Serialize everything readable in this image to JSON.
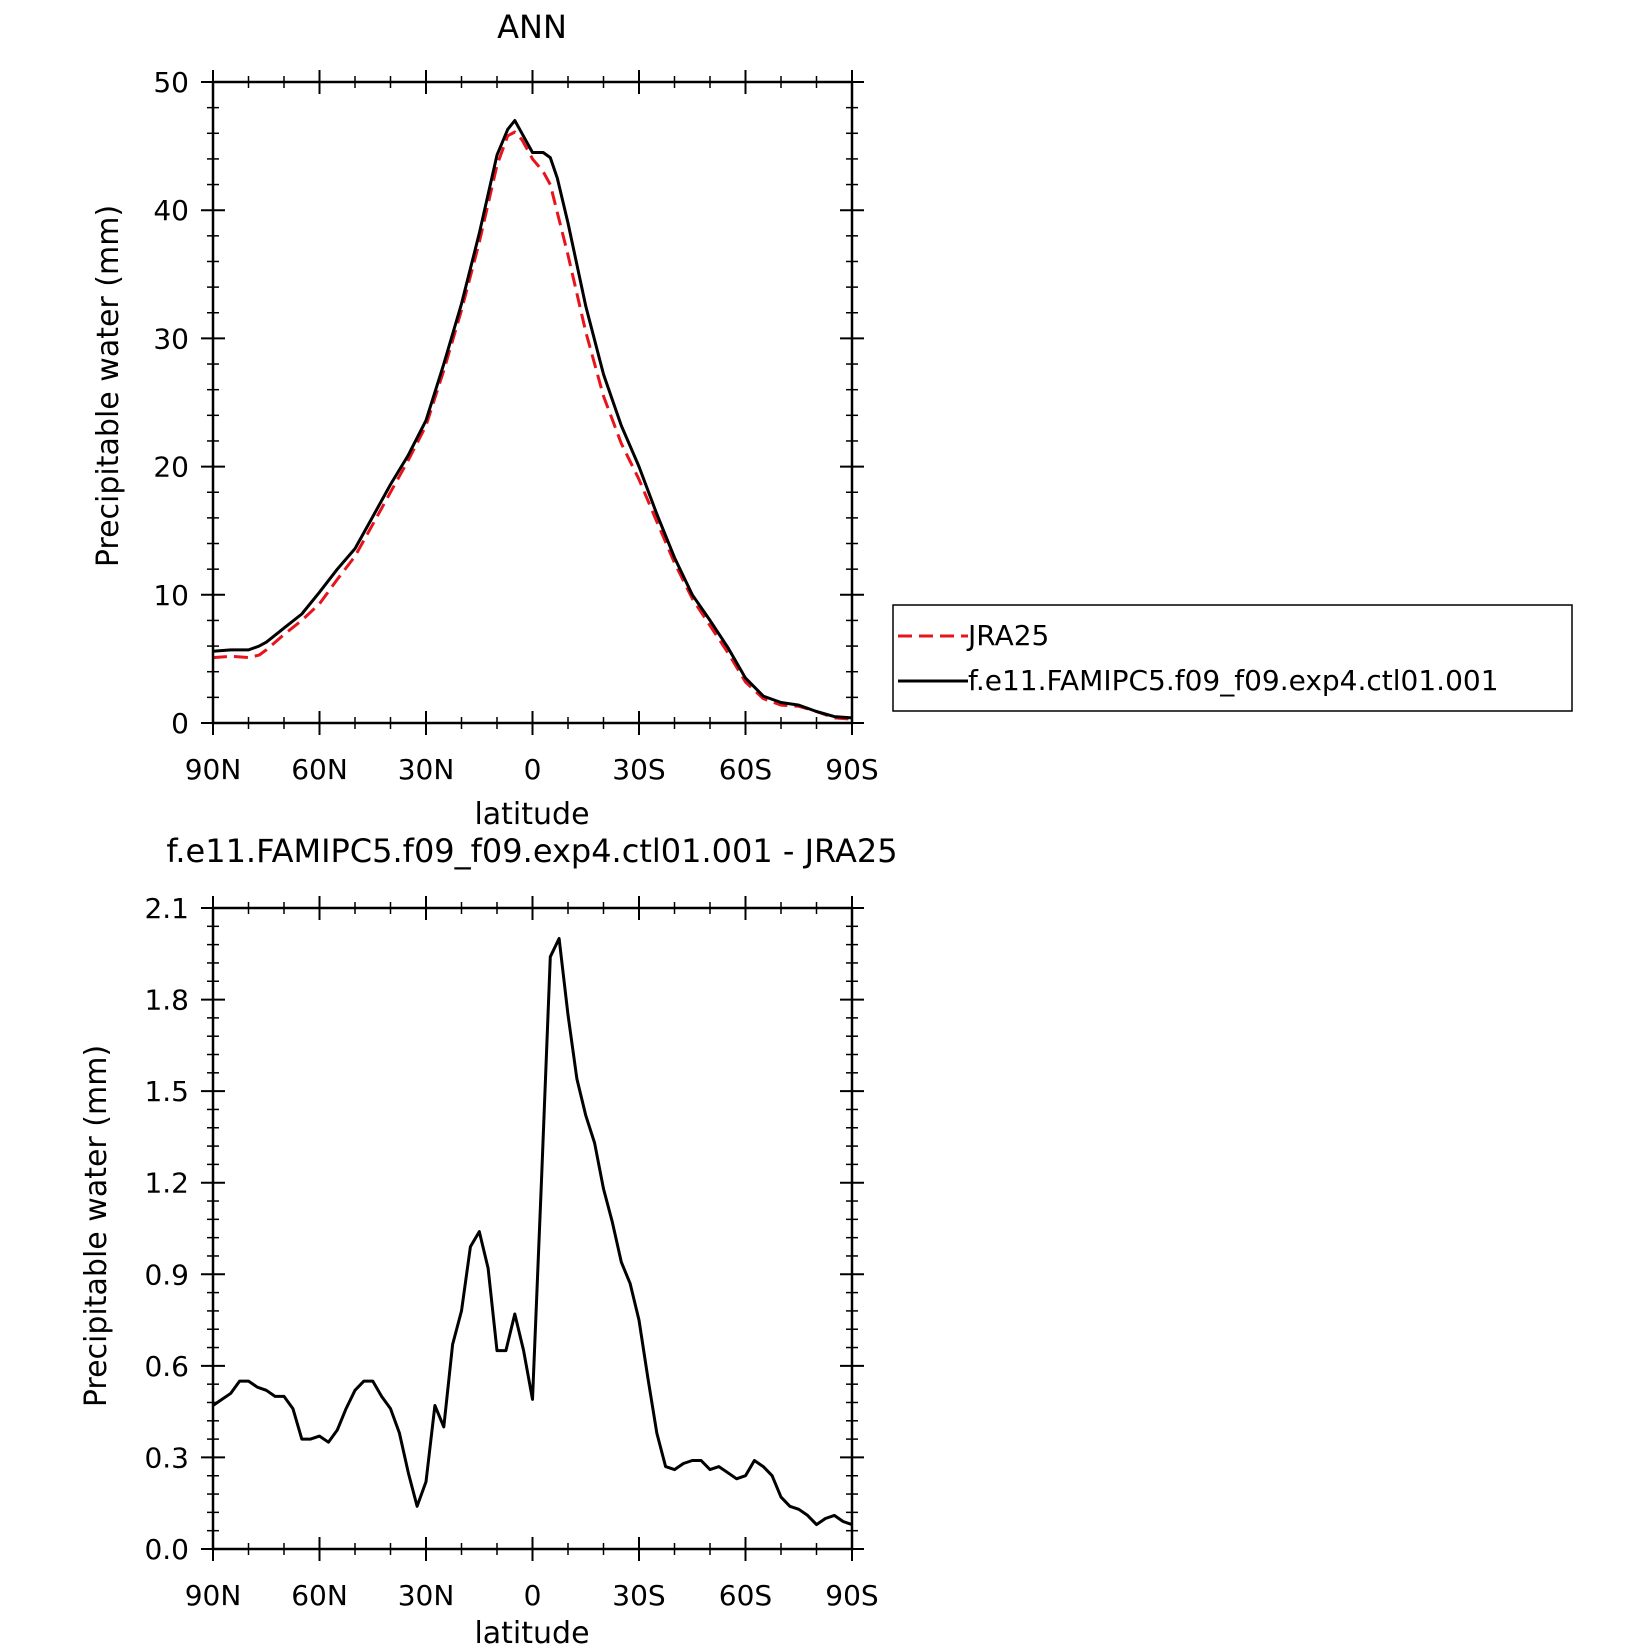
{
  "chart_data": [
    {
      "type": "line",
      "title": "ANN",
      "xlabel": "latitude",
      "ylabel": "Precipitable water (mm)",
      "xlim": [
        90,
        -90
      ],
      "ylim": [
        0,
        50
      ],
      "x_tick_values": [
        90,
        60,
        30,
        0,
        -30,
        -60,
        -90
      ],
      "x_tick_labels": [
        "90N",
        "60N",
        "30N",
        "0",
        "30S",
        "60S",
        "90S"
      ],
      "y_tick_values": [
        0,
        10,
        20,
        30,
        40,
        50
      ],
      "y_tick_labels": [
        "0",
        "10",
        "20",
        "30",
        "40",
        "50"
      ],
      "legend_position": "right",
      "series": [
        {
          "name": "JRA25",
          "color": "#e8141c",
          "dash": "dashed",
          "x": [
            90,
            85,
            80,
            77,
            75,
            70,
            65,
            60,
            55,
            50,
            45,
            40,
            35,
            30,
            25,
            20,
            15,
            10,
            7,
            5,
            3,
            0,
            -3,
            -5,
            -10,
            -15,
            -20,
            -25,
            -30,
            -35,
            -40,
            -45,
            -50,
            -55,
            -60,
            -65,
            -70,
            -75,
            -80,
            -85,
            -90
          ],
          "y": [
            5.1,
            5.2,
            5.1,
            5.3,
            5.7,
            6.9,
            8.0,
            9.3,
            11.2,
            13.0,
            15.5,
            18.0,
            20.5,
            23.2,
            27.5,
            32.2,
            37.5,
            43.5,
            45.8,
            46.1,
            45.5,
            44.0,
            43.0,
            42.0,
            36.5,
            30.5,
            25.5,
            21.8,
            19.0,
            15.7,
            12.5,
            9.7,
            7.6,
            5.5,
            3.2,
            1.9,
            1.4,
            1.3,
            0.9,
            0.4,
            0.3
          ]
        },
        {
          "name": "f.e11.FAMIPC5.f09_f09.exp4.ctl01.001",
          "color": "#000000",
          "dash": "solid",
          "x": [
            90,
            85,
            80,
            77,
            75,
            70,
            65,
            60,
            55,
            50,
            45,
            40,
            35,
            30,
            25,
            20,
            15,
            10,
            7,
            5,
            3,
            0,
            -3,
            -5,
            -7,
            -10,
            -15,
            -20,
            -25,
            -30,
            -35,
            -40,
            -45,
            -50,
            -55,
            -60,
            -65,
            -70,
            -75,
            -80,
            -85,
            -90
          ],
          "y": [
            5.6,
            5.7,
            5.7,
            6.0,
            6.3,
            7.4,
            8.5,
            10.2,
            12.0,
            13.6,
            16.1,
            18.6,
            20.9,
            23.6,
            28.0,
            32.7,
            38.2,
            44.3,
            46.3,
            47.0,
            46.0,
            44.5,
            44.5,
            44.1,
            42.5,
            39.0,
            32.5,
            27.2,
            23.2,
            20.0,
            16.3,
            12.9,
            10.0,
            8.0,
            5.9,
            3.5,
            2.1,
            1.6,
            1.4,
            0.9,
            0.5,
            0.4
          ]
        }
      ]
    },
    {
      "type": "line",
      "title": "f.e11.FAMIPC5.f09_f09.exp4.ctl01.001 - JRA25",
      "xlabel": "latitude",
      "ylabel": "Precipitable water (mm)",
      "xlim": [
        90,
        -90
      ],
      "ylim": [
        0,
        2.1
      ],
      "x_tick_values": [
        90,
        60,
        30,
        0,
        -30,
        -60,
        -90
      ],
      "x_tick_labels": [
        "90N",
        "60N",
        "30N",
        "0",
        "30S",
        "60S",
        "90S"
      ],
      "y_tick_values": [
        0,
        0.3,
        0.6,
        0.9,
        1.2,
        1.5,
        1.8,
        2.1
      ],
      "y_tick_labels": [
        "0.0",
        "0.3",
        "0.6",
        "0.9",
        "1.2",
        "1.5",
        "1.8",
        "2.1"
      ],
      "series": [
        {
          "color": "#000000",
          "dash": "solid",
          "x": [
            90,
            87.5,
            85,
            82.5,
            80,
            77.5,
            75,
            72.5,
            70,
            67.5,
            65,
            62.5,
            60,
            57.5,
            55,
            52.5,
            50,
            47.5,
            45,
            42.5,
            40,
            37.5,
            35,
            32.5,
            30,
            27.5,
            25,
            22.5,
            20,
            17.5,
            15,
            12.5,
            10,
            7.5,
            5,
            2.5,
            0,
            -2.5,
            -5,
            -7.5,
            -10,
            -12.5,
            -15,
            -17.5,
            -20,
            -22.5,
            -25,
            -27.5,
            -30,
            -32.5,
            -35,
            -37.5,
            -40,
            -42.5,
            -45,
            -47.5,
            -50,
            -52.5,
            -55,
            -57.5,
            -60,
            -62.5,
            -65,
            -67.5,
            -70,
            -72.5,
            -75,
            -77.5,
            -80,
            -82.5,
            -85,
            -87.5,
            -90
          ],
          "y": [
            0.47,
            0.49,
            0.51,
            0.55,
            0.55,
            0.53,
            0.52,
            0.5,
            0.5,
            0.46,
            0.36,
            0.36,
            0.37,
            0.35,
            0.39,
            0.46,
            0.52,
            0.55,
            0.55,
            0.5,
            0.46,
            0.38,
            0.25,
            0.14,
            0.22,
            0.47,
            0.4,
            0.67,
            0.78,
            0.99,
            1.04,
            0.92,
            0.65,
            0.65,
            0.77,
            0.65,
            0.49,
            1.2,
            1.94,
            2.0,
            1.75,
            1.54,
            1.42,
            1.33,
            1.18,
            1.07,
            0.94,
            0.87,
            0.75,
            0.56,
            0.38,
            0.27,
            0.26,
            0.28,
            0.29,
            0.29,
            0.26,
            0.27,
            0.25,
            0.23,
            0.24,
            0.29,
            0.27,
            0.24,
            0.17,
            0.14,
            0.13,
            0.11,
            0.08,
            0.1,
            0.11,
            0.09,
            0.08
          ]
        }
      ]
    }
  ]
}
